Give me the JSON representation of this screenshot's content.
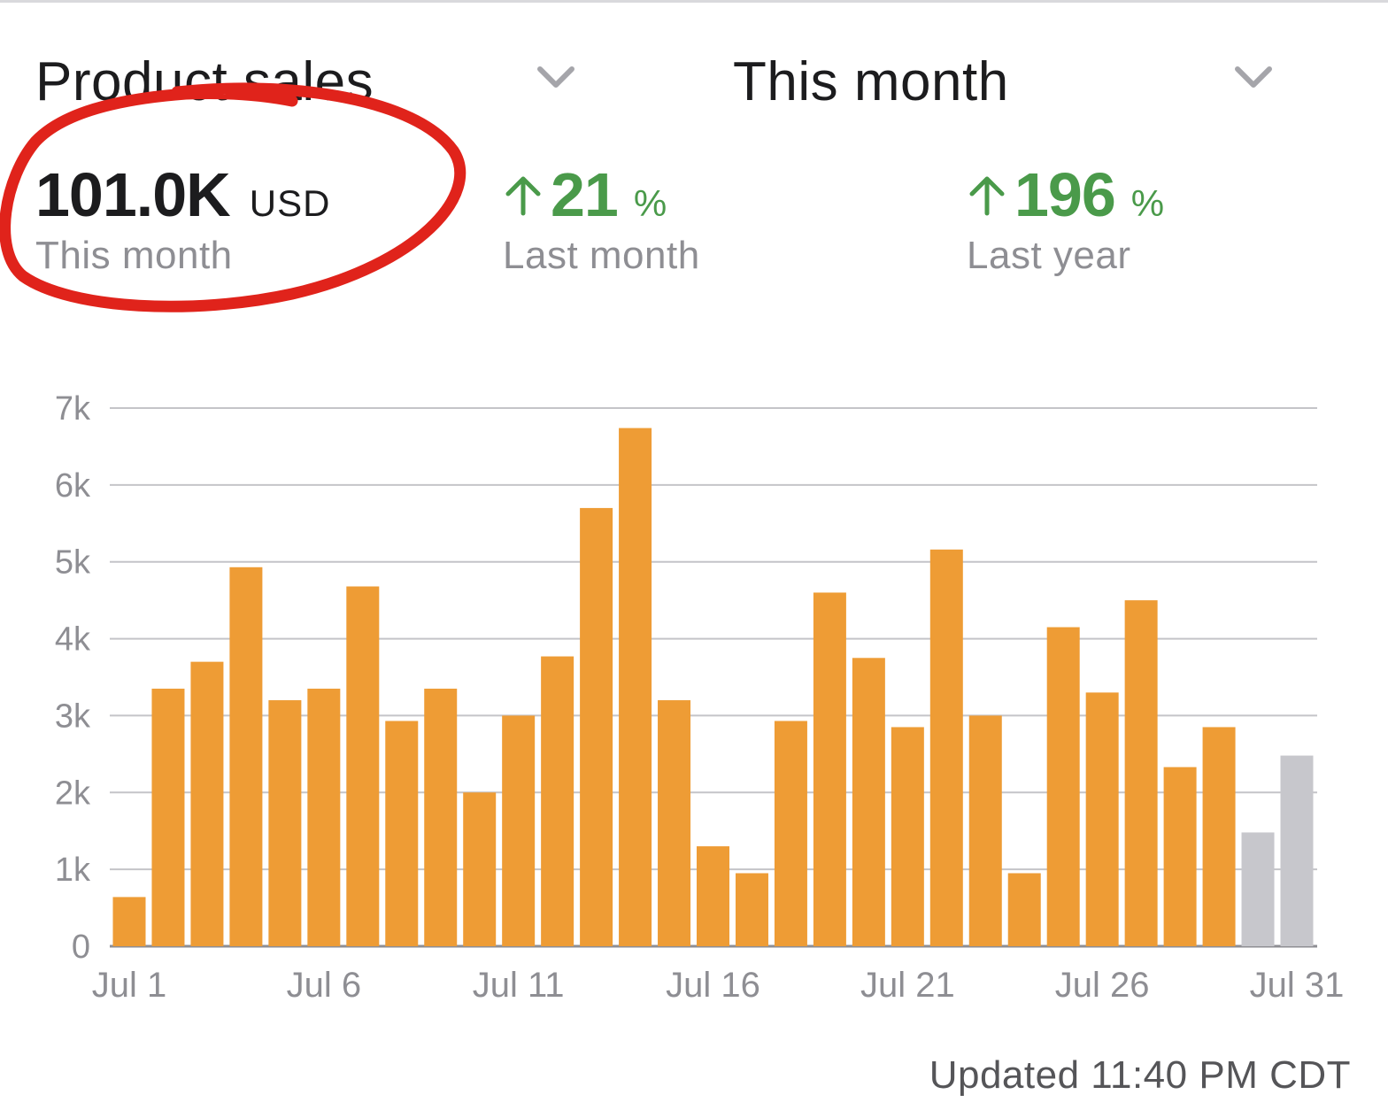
{
  "header": {
    "metric_selector": "Product sales",
    "period_selector": "This month"
  },
  "metrics": {
    "current": {
      "value": "101.0K",
      "unit": "USD",
      "caption": "This month"
    },
    "vs_last_month": {
      "value": "21",
      "unit": "%",
      "caption": "Last month",
      "direction": "up"
    },
    "vs_last_year": {
      "value": "196",
      "unit": "%",
      "caption": "Last year",
      "direction": "up"
    }
  },
  "colors": {
    "bar": "#ee9c35",
    "bar_forecast": "#c7c7cc",
    "positive": "#4a9a4a",
    "annotation": "#e0231b"
  },
  "icons": {
    "dropdown": "chevron-down-icon",
    "trend": "arrow-up-icon"
  },
  "chart_data": {
    "type": "bar",
    "categories": [
      "Jul 1",
      "Jul 2",
      "Jul 3",
      "Jul 4",
      "Jul 5",
      "Jul 6",
      "Jul 7",
      "Jul 8",
      "Jul 9",
      "Jul 10",
      "Jul 11",
      "Jul 12",
      "Jul 13",
      "Jul 14",
      "Jul 15",
      "Jul 16",
      "Jul 17",
      "Jul 18",
      "Jul 19",
      "Jul 20",
      "Jul 21",
      "Jul 22",
      "Jul 23",
      "Jul 24",
      "Jul 25",
      "Jul 26",
      "Jul 27",
      "Jul 28",
      "Jul 29",
      "Jul 30",
      "Jul 31"
    ],
    "x_tick_labels": [
      "Jul 1",
      "Jul 6",
      "Jul 11",
      "Jul 16",
      "Jul 21",
      "Jul 26",
      "Jul 31"
    ],
    "values": [
      640,
      3350,
      3700,
      4930,
      3200,
      3350,
      4680,
      2930,
      3350,
      2000,
      3000,
      3770,
      5700,
      6740,
      3200,
      1300,
      950,
      2930,
      4600,
      3750,
      2850,
      5160,
      3000,
      950,
      4150,
      3300,
      4500,
      2330,
      2850,
      1480,
      2480
    ],
    "bar_status": [
      "actual",
      "actual",
      "actual",
      "actual",
      "actual",
      "actual",
      "actual",
      "actual",
      "actual",
      "actual",
      "actual",
      "actual",
      "actual",
      "actual",
      "actual",
      "actual",
      "actual",
      "actual",
      "actual",
      "actual",
      "actual",
      "actual",
      "actual",
      "actual",
      "actual",
      "actual",
      "actual",
      "actual",
      "actual",
      "projected",
      "projected"
    ],
    "y_tick_labels": [
      "0",
      "1k",
      "2k",
      "3k",
      "4k",
      "5k",
      "6k",
      "7k"
    ],
    "ylim": [
      0,
      7000
    ],
    "grid": true,
    "title": "",
    "xlabel": "",
    "ylabel": ""
  },
  "footer": {
    "updated": "Updated 11:40 PM CDT"
  }
}
